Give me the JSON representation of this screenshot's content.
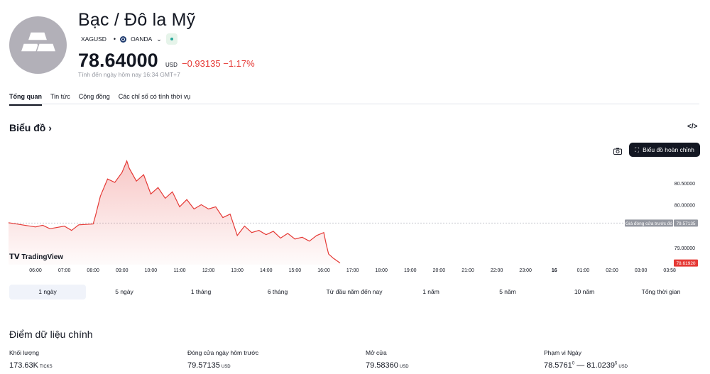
{
  "header": {
    "title": "Bạc / Đô la Mỹ",
    "symbol": "XAGUSD",
    "broker": "OANDA",
    "price": "78.64000",
    "currency": "USD",
    "change": "−0.93135",
    "change_pct": "−1.17%",
    "as_of": "Tính đến ngày hôm nay 16:34 GMT+7",
    "accent_negative": "#e53935"
  },
  "tabs": [
    {
      "label": "Tổng quan",
      "active": true
    },
    {
      "label": "Tin tức"
    },
    {
      "label": "Cộng đồng"
    },
    {
      "label": "Các chỉ số có tính thời vụ"
    }
  ],
  "chart_section": {
    "title": "Biểu đồ ›",
    "embed_icon": "</>",
    "full_chart_label": "Biểu đồ hoàn chỉnh",
    "brand": "TradingView"
  },
  "chart_data": {
    "type": "area",
    "x_ticks": [
      "06:00",
      "07:00",
      "08:00",
      "09:00",
      "10:00",
      "11:00",
      "12:00",
      "13:00",
      "14:00",
      "15:00",
      "16:00",
      "17:00",
      "18:00",
      "19:00",
      "20:00",
      "21:00",
      "22:00",
      "23:00",
      "16",
      "01:00",
      "02:00",
      "03:00",
      "03:58"
    ],
    "y_ticks": [
      "80.50000",
      "80.00000",
      "79.00000"
    ],
    "ylim": [
      78.6,
      81.05
    ],
    "prev_close_label": "Giá đóng cửa trước đó",
    "prev_close_value": "79.57135",
    "prev_close": 79.57135,
    "last_value_label": "78.61920",
    "series": [
      {
        "x": [
          "05:30",
          "06:00",
          "06:15",
          "06:30",
          "07:00",
          "07:15",
          "07:30",
          "08:00",
          "08:05",
          "08:15",
          "08:30",
          "08:45",
          "09:00",
          "09:10",
          "09:15",
          "09:30",
          "09:45",
          "10:00",
          "10:15",
          "10:30",
          "10:45",
          "11:00",
          "11:15",
          "11:30",
          "11:45",
          "12:00",
          "12:15",
          "12:30",
          "12:45",
          "13:00",
          "13:15",
          "13:30",
          "13:45",
          "14:00",
          "14:15",
          "14:30",
          "14:45",
          "15:00",
          "15:15",
          "15:30",
          "15:45",
          "16:00",
          "16:05",
          "16:10",
          "16:20",
          "16:34"
        ],
        "y": [
          79.58,
          79.48,
          79.52,
          79.44,
          79.5,
          79.4,
          79.53,
          79.55,
          79.75,
          80.2,
          80.6,
          80.52,
          80.75,
          81.02,
          80.85,
          80.55,
          80.7,
          80.25,
          80.4,
          80.15,
          80.3,
          79.95,
          80.12,
          79.9,
          80.0,
          79.9,
          79.95,
          79.7,
          79.78,
          79.28,
          79.5,
          79.35,
          79.4,
          79.3,
          79.38,
          79.22,
          79.33,
          79.2,
          79.24,
          79.15,
          79.28,
          79.35,
          79.08,
          78.85,
          78.75,
          78.64
        ]
      }
    ],
    "color": "#e53935",
    "grid": false
  },
  "ranges": [
    {
      "label": "1 ngày",
      "active": true
    },
    {
      "label": "5 ngày"
    },
    {
      "label": "1 tháng"
    },
    {
      "label": "6 tháng"
    },
    {
      "label": "Từ đầu năm đến nay"
    },
    {
      "label": "1 năm"
    },
    {
      "label": "5 năm"
    },
    {
      "label": "10 năm"
    },
    {
      "label": "Tổng thời gian"
    }
  ],
  "key_data": {
    "title": "Điểm dữ liệu chính",
    "volume_label": "Khối lượng",
    "volume_value": "173.63K",
    "volume_unit": "TICKS",
    "prev_close_label": "Đóng cửa ngày hôm trước",
    "prev_close_value": "79.57135",
    "prev_close_unit": "USD",
    "open_label": "Mở cửa",
    "open_value": "79.58360",
    "open_unit": "USD",
    "range_label": "Phạm vi Ngày",
    "range_low": "78.5761",
    "range_low_sup": "0",
    "range_sep": " — ",
    "range_high": "81.0239",
    "range_high_sup": "5",
    "range_unit": "USD"
  }
}
